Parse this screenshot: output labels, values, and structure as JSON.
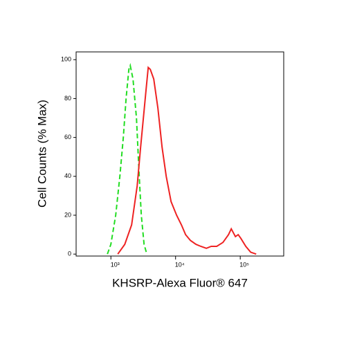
{
  "chart_data": {
    "type": "line",
    "x_label": "KHSRP-Alexa Fluor® 647",
    "y_label": "Cell Counts (% Max)",
    "x_scale": "log",
    "xlim": [
      290,
      470000
    ],
    "ylim": [
      -1,
      104
    ],
    "xticks": [
      {
        "value": 1000,
        "label": "10³"
      },
      {
        "value": 10000,
        "label": "10⁴"
      },
      {
        "value": 100000,
        "label": "10⁵"
      }
    ],
    "yticks": [
      0,
      20,
      40,
      60,
      80,
      100
    ],
    "series": [
      {
        "color": "#22dd22",
        "dashed": true,
        "x": [
          884,
          1000,
          1188,
          1377,
          1557,
          1718,
          1897,
          1993,
          2199,
          2487,
          2745,
          2955,
          3258,
          3594
        ],
        "values": [
          0,
          5,
          20,
          40,
          60,
          80,
          95,
          97,
          90,
          70,
          40,
          20,
          5,
          0
        ]
      },
      {
        "color": "#ee2222",
        "dashed": false,
        "x": [
          1279,
          1637,
          2094,
          2550,
          2884,
          3182,
          3512,
          3780,
          4070,
          4604,
          5338,
          6185,
          7172,
          8521,
          10380,
          12330,
          14290,
          16980,
          20680,
          24570,
          29920,
          35550,
          43290,
          54040,
          65800,
          72610,
          78160,
          84140,
          92890,
          102500,
          121800,
          144700,
          176200
        ],
        "values": [
          0,
          5,
          15,
          35,
          55,
          70,
          85,
          96,
          95,
          90,
          75,
          55,
          40,
          27,
          20,
          15,
          10,
          7,
          5,
          4,
          3,
          4,
          4,
          6,
          10,
          13,
          11,
          9,
          10,
          8,
          4,
          1,
          0
        ]
      }
    ]
  }
}
